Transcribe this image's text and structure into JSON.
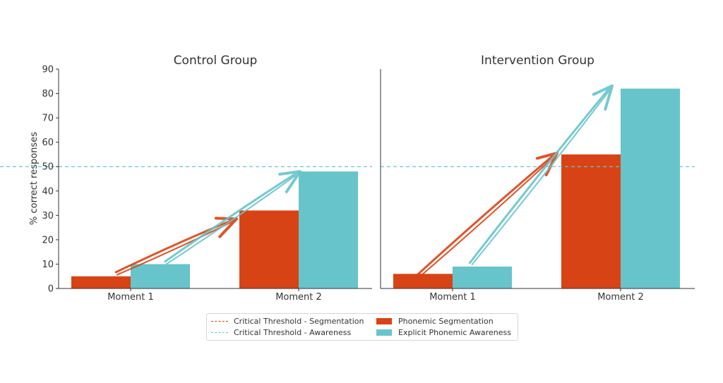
{
  "colors": {
    "segmentation": "#d84315",
    "awareness": "#67c4cb",
    "axis": "#333333"
  },
  "y_axis_label": "% correct responses",
  "chart_data": [
    {
      "type": "bar",
      "title": "Control Group",
      "categories": [
        "Moment 1",
        "Moment 2"
      ],
      "series": [
        {
          "name": "Phonemic Segmentation",
          "values": [
            5,
            32
          ]
        },
        {
          "name": "Explicit Phonemic Awareness",
          "values": [
            10,
            48
          ]
        }
      ],
      "thresholds": [
        {
          "name": "Critical Threshold - Segmentation",
          "value": 50,
          "style": "dashed"
        },
        {
          "name": "Critical Threshold - Awareness",
          "value": 50,
          "style": "dashed"
        }
      ],
      "ylabel": "% correct responses",
      "ylim": [
        0,
        90
      ],
      "yticks": [
        0,
        10,
        20,
        30,
        40,
        50,
        60,
        70,
        80,
        90
      ],
      "annotations": "hand-drawn arrows from Moment 1 to Moment 2 for each series"
    },
    {
      "type": "bar",
      "title": "Intervention Group",
      "categories": [
        "Moment 1",
        "Moment 2"
      ],
      "series": [
        {
          "name": "Phonemic Segmentation",
          "values": [
            6,
            55
          ]
        },
        {
          "name": "Explicit Phonemic Awareness",
          "values": [
            9,
            82
          ]
        }
      ],
      "thresholds": [
        {
          "name": "Critical Threshold - Segmentation",
          "value": 50,
          "style": "dashed"
        },
        {
          "name": "Critical Threshold - Awareness",
          "value": 50,
          "style": "dashed"
        }
      ],
      "ylim": [
        0,
        90
      ],
      "annotations": "hand-drawn arrows from Moment 1 to Moment 2 for each series"
    }
  ],
  "legend": {
    "items": [
      {
        "label": "Critical Threshold - Segmentation",
        "kind": "line"
      },
      {
        "label": "Critical Threshold - Awareness",
        "kind": "line"
      },
      {
        "label": "Phonemic Segmentation",
        "kind": "bar"
      },
      {
        "label": "Explicit Phonemic Awareness",
        "kind": "bar"
      }
    ]
  }
}
